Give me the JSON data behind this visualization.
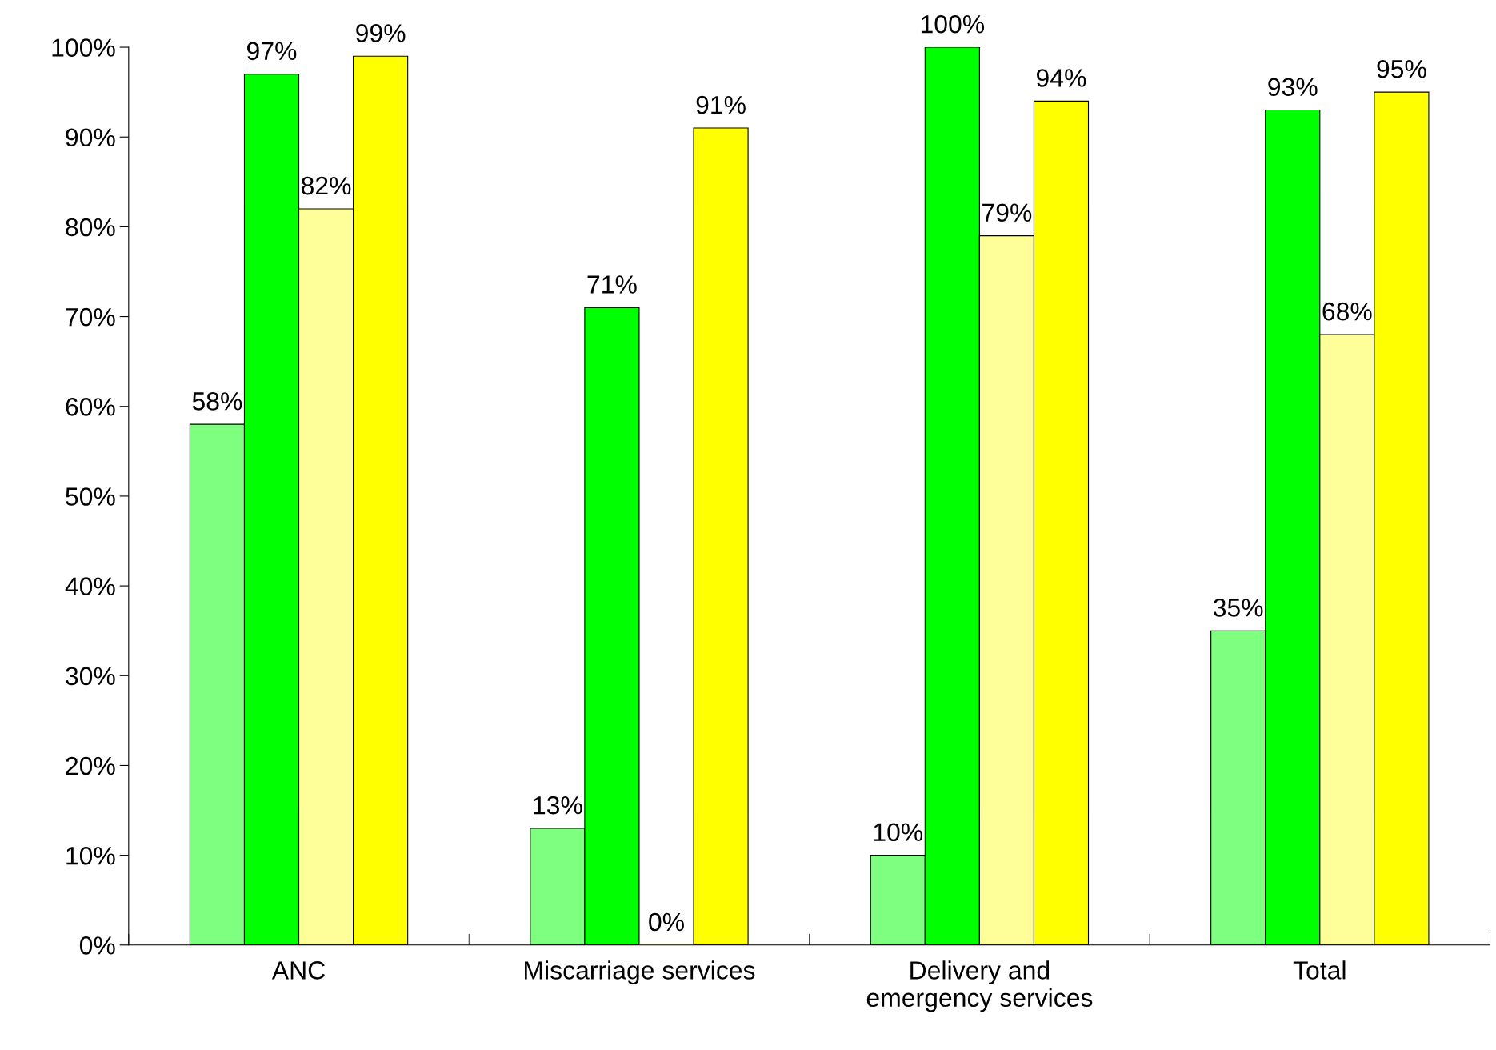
{
  "chart_data": {
    "type": "bar",
    "categories": [
      "ANC",
      "Miscarriage services",
      "Delivery and\nemergency services",
      "Total"
    ],
    "series": [
      {
        "color": "#7fff7f",
        "values": [
          58,
          13,
          10,
          35
        ],
        "value_labels": [
          "58%",
          "13%",
          "10%",
          "35%"
        ]
      },
      {
        "color": "#00ff00",
        "values": [
          97,
          71,
          100,
          93
        ],
        "value_labels": [
          "97%",
          "71%",
          "100%",
          "93%"
        ]
      },
      {
        "color": "#ffff99",
        "values": [
          82,
          0,
          79,
          68
        ],
        "value_labels": [
          "82%",
          "0%",
          "79%",
          "68%"
        ]
      },
      {
        "color": "#ffff00",
        "values": [
          99,
          91,
          94,
          95
        ],
        "value_labels": [
          "99%",
          "91%",
          "94%",
          "95%"
        ]
      }
    ],
    "ylim": [
      0,
      100
    ],
    "yticks": [
      {
        "value": 0,
        "label": "0%"
      },
      {
        "value": 10,
        "label": "10%"
      },
      {
        "value": 20,
        "label": "20%"
      },
      {
        "value": 30,
        "label": "30%"
      },
      {
        "value": 40,
        "label": "40%"
      },
      {
        "value": 50,
        "label": "50%"
      },
      {
        "value": 60,
        "label": "60%"
      },
      {
        "value": 70,
        "label": "70%"
      },
      {
        "value": 80,
        "label": "80%"
      },
      {
        "value": 90,
        "label": "90%"
      },
      {
        "value": 100,
        "label": "100%"
      }
    ],
    "grid": false,
    "legend": false
  }
}
